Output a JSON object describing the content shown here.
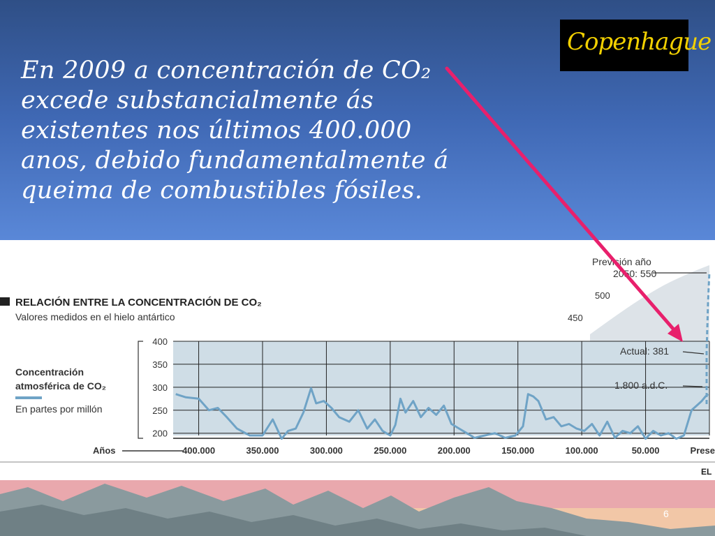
{
  "slide": {
    "headline_lines": [
      "En 2009 a concentración de CO₂",
      "excede substancialmente ás",
      "existentes nos últimos 400.000",
      "anos, debido fundamentalmente á",
      "queima de combustibles fósiles."
    ],
    "logo_text": "Copenhague",
    "slide_number": "6",
    "arrow_color": "#e8206c"
  },
  "chart_data": {
    "type": "line",
    "title": "RELACIÓN ENTRE LA CONCENTRACIÓN DE CO₂",
    "subtitle": "Valores medidos en el hielo antártico",
    "series_label_lines": [
      "Concentración",
      "atmosférica de CO₂"
    ],
    "units_label": "En partes por millón",
    "xlabel": "Años",
    "x_tick_labels": [
      "400.000",
      "350.000",
      "300.000",
      "250.000",
      "200.000",
      "150.000",
      "100.000",
      "50.000",
      "Presente"
    ],
    "x_ticks": [
      400000,
      350000,
      300000,
      250000,
      200000,
      150000,
      100000,
      50000,
      0
    ],
    "xlim": [
      420000,
      0
    ],
    "y_ticks": [
      200,
      250,
      300,
      350,
      400
    ],
    "ylim": [
      195,
      400
    ],
    "upper_scale_labels": [
      "500",
      "450"
    ],
    "annotations": [
      {
        "text": "Previsión año 2050: 550",
        "lines": [
          "Previsión año",
          "2050: 550"
        ],
        "value": 550
      },
      {
        "text": "Actual: 381",
        "value": 381
      },
      {
        "text": "1.800 a.d.C.",
        "value": 280
      }
    ],
    "source_fragment": "EL",
    "line_color": "#6fa3c6",
    "grid": true,
    "series": [
      {
        "x": [
          418000,
          410000,
          400000,
          392000,
          385000,
          378000,
          370000,
          360000,
          350000,
          342000,
          335000,
          330000,
          324000,
          318000,
          312000,
          308000,
          302000,
          296000,
          290000,
          282000,
          275000,
          268000,
          262000,
          256000,
          250000,
          246000,
          242000,
          238000,
          232000,
          226000,
          220000,
          214000,
          208000,
          202000,
          196000,
          190000,
          184000,
          176000,
          168000,
          160000,
          152000,
          146000,
          142000,
          138000,
          134000,
          128000,
          122000,
          116000,
          110000,
          104000,
          98000,
          92000,
          86000,
          80000,
          74000,
          68000,
          62000,
          56000,
          50000,
          44000,
          38000,
          32000,
          26000,
          20000,
          14000,
          10000,
          6000,
          3000,
          1000
        ],
        "y": [
          285,
          278,
          275,
          250,
          255,
          235,
          210,
          195,
          195,
          230,
          188,
          205,
          210,
          245,
          298,
          265,
          270,
          255,
          235,
          225,
          250,
          210,
          230,
          205,
          195,
          218,
          275,
          245,
          270,
          235,
          255,
          240,
          260,
          220,
          210,
          200,
          190,
          195,
          200,
          190,
          195,
          215,
          285,
          280,
          270,
          230,
          235,
          215,
          220,
          210,
          205,
          220,
          195,
          225,
          190,
          205,
          200,
          215,
          188,
          205,
          195,
          200,
          188,
          195,
          250,
          260,
          270,
          280,
          285
        ]
      }
    ]
  }
}
